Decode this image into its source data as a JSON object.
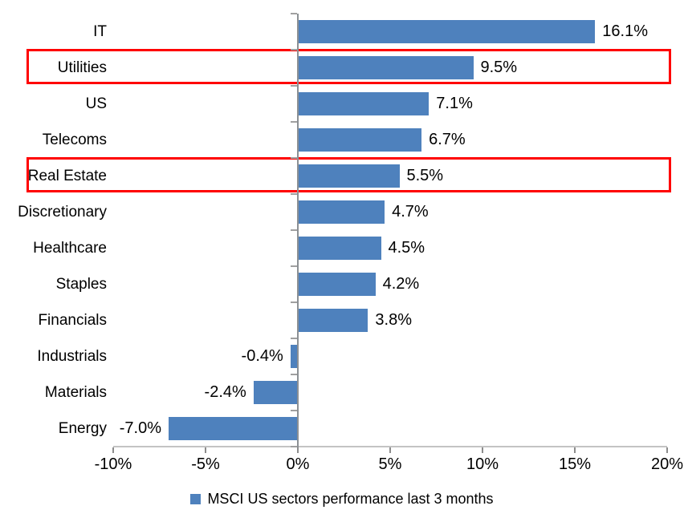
{
  "chart_data": {
    "type": "bar",
    "orientation": "horizontal",
    "title": "",
    "categories": [
      "IT",
      "Utilities",
      "US",
      "Telecoms",
      "Real Estate",
      "Discretionary",
      "Healthcare",
      "Staples",
      "Financials",
      "Industrials",
      "Materials",
      "Energy"
    ],
    "values": [
      16.1,
      9.5,
      7.1,
      6.7,
      5.5,
      4.7,
      4.5,
      4.2,
      3.8,
      -0.4,
      -2.4,
      -7.0
    ],
    "value_labels": [
      "16.1%",
      "9.5%",
      "7.1%",
      "6.7%",
      "5.5%",
      "4.7%",
      "4.5%",
      "4.2%",
      "3.8%",
      "-0.4%",
      "-2.4%",
      "-7.0%"
    ],
    "highlighted_categories": [
      "Utilities",
      "Real Estate"
    ],
    "xlim": [
      -10,
      20
    ],
    "x_ticks": [
      {
        "value": -10,
        "label": "-10%"
      },
      {
        "value": -5,
        "label": "-5%"
      },
      {
        "value": 0,
        "label": "0%"
      },
      {
        "value": 5,
        "label": "5%"
      },
      {
        "value": 10,
        "label": "10%"
      },
      {
        "value": 15,
        "label": "15%"
      },
      {
        "value": 20,
        "label": "20%"
      }
    ],
    "grid": false,
    "legend": {
      "position": "bottom",
      "label": "MSCI US sectors performance last 3 months"
    },
    "colors": {
      "bar": "#4E81BD",
      "highlight_border": "#FF0000",
      "value_axis_line": "#C3C3C3",
      "category_axis_line": "#8C9094",
      "tick": "#8C8C8C",
      "text": "#000000",
      "background": "#FFFFFF"
    }
  }
}
